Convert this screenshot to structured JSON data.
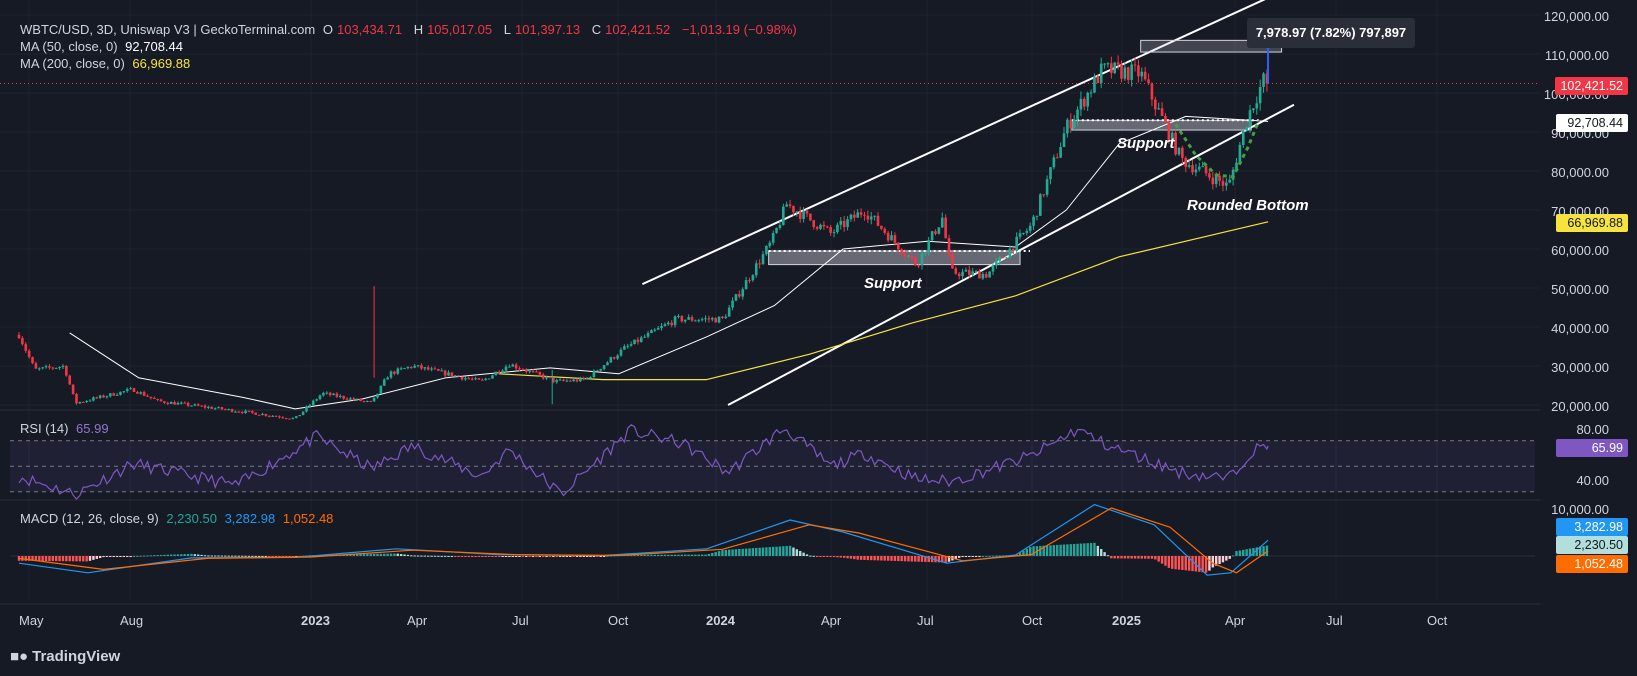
{
  "header": {
    "symbol": "WBTC/USD, 3D, Uniswap V3 | GeckoTerminal.com",
    "o_label": "O",
    "o_value": "103,434.71",
    "h_label": "H",
    "h_value": "105,017.05",
    "l_label": "L",
    "l_value": "101,397.13",
    "c_label": "C",
    "c_value": "102,421.52",
    "change": "−1,013.19 (−0.98%)",
    "ma50_label": "MA (50, close, 0)",
    "ma50_value": "92,708.44",
    "ma200_label": "MA (200, close, 0)",
    "ma200_value": "66,969.88"
  },
  "rsi": {
    "label": "RSI (14)",
    "value": "65.99",
    "ticks": [
      "80.00",
      "40.00"
    ]
  },
  "macd": {
    "label": "MACD (12, 26, close, 9)",
    "hist": "2,230.50",
    "macd": "3,282.98",
    "signal": "1,052.48",
    "badge_macd": "3,282.98",
    "badge_hist": "2,230.50",
    "badge_signal": "1,052.48",
    "tick": "10,000.00"
  },
  "price_badges": {
    "last": "102,421.52",
    "ma50": "92,708.44",
    "ma200": "66,969.88"
  },
  "tooltip": "7,978.97 (7.82%) 797,897",
  "annotations": {
    "support_upper": "Support",
    "support_lower": "Support",
    "rounded": "Rounded Bottom"
  },
  "footer": {
    "logo": "TradingView"
  },
  "colors": {
    "up": "#22ab94",
    "down": "#f23645",
    "ma50": "#ffffff",
    "ma200": "#f7e33d",
    "rsi": "#7e57c2",
    "macd": "#2962ff",
    "signal": "#ff6d00"
  },
  "chart_data": [
    {
      "type": "candlestick",
      "title": "WBTC/USD, 3D, Uniswap V3",
      "x_tick_labels": [
        "May",
        "Aug",
        "2023",
        "Apr",
        "Jul",
        "Oct",
        "2024",
        "Apr",
        "Jul",
        "Oct",
        "2025",
        "Apr",
        "Jul",
        "Oct"
      ],
      "y_tick_labels": [
        "120,000.00",
        "110,000.00",
        "100,000.00",
        "90,000.00",
        "80,000.00",
        "70,000.00",
        "60,000.00",
        "50,000.00",
        "40,000.00",
        "30,000.00",
        "20,000.00"
      ],
      "ylim": [
        20000,
        120000
      ],
      "close_path": [
        [
          "2022-05-01",
          38000
        ],
        [
          "2022-05-15",
          29000
        ],
        [
          "2022-06-10",
          30000
        ],
        [
          "2022-06-20",
          20500
        ],
        [
          "2022-08-10",
          24000
        ],
        [
          "2022-09-01",
          21000
        ],
        [
          "2022-11-10",
          18500
        ],
        [
          "2023-01-01",
          16500
        ],
        [
          "2023-01-25",
          23000
        ],
        [
          "2023-03-10",
          20500
        ],
        [
          "2023-03-25",
          28000
        ],
        [
          "2023-04-15",
          30000
        ],
        [
          "2023-06-15",
          26000
        ],
        [
          "2023-07-10",
          30500
        ],
        [
          "2023-08-20",
          26000
        ],
        [
          "2023-09-15",
          26500
        ],
        [
          "2023-10-20",
          34500
        ],
        [
          "2023-12-05",
          42000
        ],
        [
          "2024-01-15",
          42000
        ],
        [
          "2024-02-28",
          62000
        ],
        [
          "2024-03-12",
          71500
        ],
        [
          "2024-04-20",
          64000
        ],
        [
          "2024-05-20",
          70000
        ],
        [
          "2024-07-05",
          56000
        ],
        [
          "2024-07-28",
          68000
        ],
        [
          "2024-08-05",
          54000
        ],
        [
          "2024-09-06",
          53500
        ],
        [
          "2024-10-15",
          66000
        ],
        [
          "2024-11-15",
          91000
        ],
        [
          "2024-12-17",
          106000
        ],
        [
          "2025-01-20",
          105000
        ],
        [
          "2025-02-25",
          83000
        ],
        [
          "2025-04-08",
          76000
        ],
        [
          "2025-04-25",
          94000
        ],
        [
          "2025-05-10",
          104000
        ],
        [
          "2025-05-13",
          102421.52
        ]
      ],
      "ma50_path": [
        [
          "2022-06-15",
          38500
        ],
        [
          "2022-08-15",
          27000
        ],
        [
          "2022-11-15",
          22000
        ],
        [
          "2023-01-01",
          19000
        ],
        [
          "2023-03-01",
          21500
        ],
        [
          "2023-05-15",
          27000
        ],
        [
          "2023-08-15",
          29500
        ],
        [
          "2023-10-15",
          28000
        ],
        [
          "2024-01-01",
          37500
        ],
        [
          "2024-03-01",
          45500
        ],
        [
          "2024-05-01",
          60000
        ],
        [
          "2024-07-15",
          62000
        ],
        [
          "2024-10-01",
          60500
        ],
        [
          "2024-11-15",
          70000
        ],
        [
          "2025-01-01",
          87000
        ],
        [
          "2025-03-01",
          94000
        ],
        [
          "2025-05-13",
          92708.44
        ]
      ],
      "ma200_path": [
        [
          "2023-07-01",
          28000
        ],
        [
          "2023-10-01",
          26500
        ],
        [
          "2024-01-01",
          26500
        ],
        [
          "2024-04-01",
          33000
        ],
        [
          "2024-07-01",
          41000
        ],
        [
          "2024-10-01",
          48000
        ],
        [
          "2025-01-01",
          58000
        ],
        [
          "2025-05-13",
          66969.88
        ]
      ],
      "channel_upper": [
        [
          "2023-11-05",
          51000
        ],
        [
          "2025-05-25",
          126000
        ]
      ],
      "channel_lower": [
        [
          "2024-01-20",
          20000
        ],
        [
          "2025-06-05",
          97000
        ]
      ],
      "support_zones": [
        {
          "from": "2024-02-25",
          "to": "2024-10-05",
          "low": 56000,
          "high": 59500,
          "label": "Support"
        },
        {
          "from": "2024-11-20",
          "to": "2025-04-28",
          "low": 90500,
          "high": 93000,
          "label": "Support"
        }
      ],
      "measure_box": {
        "from": "2025-01-20",
        "to": "2025-05-25",
        "low": 110500,
        "high": 113500,
        "label": "7,978.97 (7.82%) 797,897"
      },
      "last_price": 102421.52,
      "ma50_last": 92708.44,
      "ma200_last": 66969.88
    },
    {
      "type": "line",
      "title": "RSI (14)",
      "y_tick_labels": [
        "80.00",
        "40.00"
      ],
      "levels": [
        70,
        50,
        30
      ],
      "series_path": [
        [
          "2022-05-01",
          42
        ],
        [
          "2022-06-20",
          28
        ],
        [
          "2022-08-10",
          52
        ],
        [
          "2022-11-10",
          35
        ],
        [
          "2023-01-20",
          73
        ],
        [
          "2023-03-10",
          48
        ],
        [
          "2023-04-15",
          66
        ],
        [
          "2023-06-15",
          42
        ],
        [
          "2023-07-10",
          63
        ],
        [
          "2023-08-25",
          28
        ],
        [
          "2023-10-25",
          78
        ],
        [
          "2023-12-10",
          68
        ],
        [
          "2024-01-20",
          45
        ],
        [
          "2024-03-10",
          80
        ],
        [
          "2024-04-20",
          50
        ],
        [
          "2024-05-20",
          60
        ],
        [
          "2024-07-05",
          40
        ],
        [
          "2024-08-05",
          38
        ],
        [
          "2024-10-15",
          58
        ],
        [
          "2024-11-25",
          79
        ],
        [
          "2024-12-20",
          67
        ],
        [
          "2025-02-25",
          45
        ],
        [
          "2025-04-08",
          40
        ],
        [
          "2025-04-28",
          62
        ],
        [
          "2025-05-13",
          65.99
        ]
      ],
      "last": 65.99
    },
    {
      "type": "line+histogram",
      "title": "MACD (12, 26, close, 9)",
      "y_tick_labels": [
        "10,000.00"
      ],
      "macd_path": [
        [
          "2022-05-01",
          -1500
        ],
        [
          "2022-07-01",
          -3500
        ],
        [
          "2022-10-01",
          -400
        ],
        [
          "2023-01-01",
          -300
        ],
        [
          "2023-04-01",
          1500
        ],
        [
          "2023-07-01",
          300
        ],
        [
          "2023-10-01",
          100
        ],
        [
          "2024-01-01",
          1500
        ],
        [
          "2024-03-15",
          7500
        ],
        [
          "2024-05-01",
          5000
        ],
        [
          "2024-08-01",
          -1500
        ],
        [
          "2024-10-01",
          200
        ],
        [
          "2024-12-10",
          10700
        ],
        [
          "2025-02-01",
          6500
        ],
        [
          "2025-03-20",
          -4000
        ],
        [
          "2025-04-10",
          -3500
        ],
        [
          "2025-05-13",
          3282.98
        ]
      ],
      "signal_path": [
        [
          "2022-05-01",
          -500
        ],
        [
          "2022-07-15",
          -2800
        ],
        [
          "2022-10-15",
          -500
        ],
        [
          "2023-01-15",
          -200
        ],
        [
          "2023-04-15",
          1200
        ],
        [
          "2023-07-15",
          300
        ],
        [
          "2023-10-15",
          100
        ],
        [
          "2024-01-15",
          1400
        ],
        [
          "2024-04-01",
          6500
        ],
        [
          "2024-05-15",
          4800
        ],
        [
          "2024-08-15",
          -1000
        ],
        [
          "2024-10-15",
          300
        ],
        [
          "2024-12-25",
          10000
        ],
        [
          "2025-02-15",
          6000
        ],
        [
          "2025-03-25",
          -1500
        ],
        [
          "2025-04-15",
          -3500
        ],
        [
          "2025-05-13",
          1052.48
        ]
      ],
      "histogram_last": 2230.5,
      "macd_last": 3282.98,
      "signal_last": 1052.48
    }
  ]
}
